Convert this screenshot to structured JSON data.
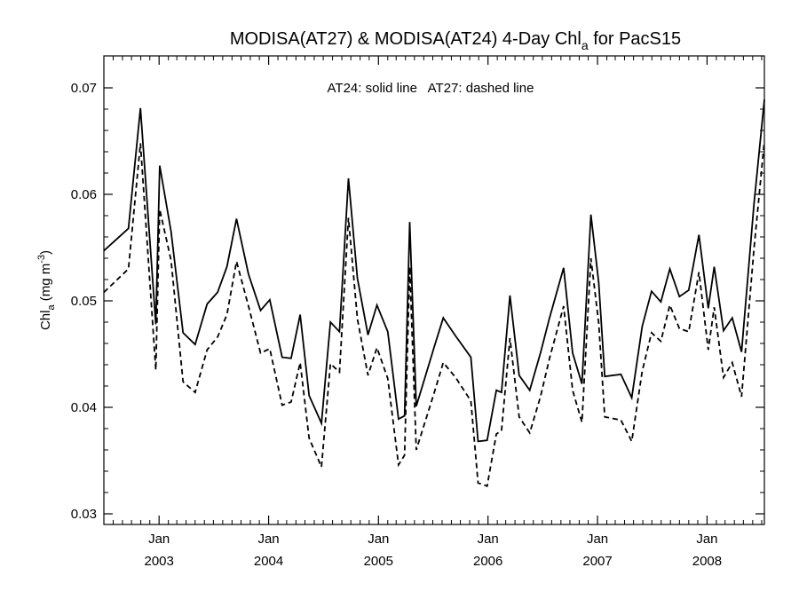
{
  "chart_data": {
    "type": "line",
    "title": {
      "main": "MODISA(AT27) & MODISA(AT24) 4-Day Chl",
      "sub": "a",
      "suffix": " for PacS15"
    },
    "ylabel": {
      "main": "Chl",
      "sub": "a",
      "mid": " (mg m",
      "sup": "-3",
      "end": ")"
    },
    "annotation": "AT24: solid line   AT27: dashed line",
    "ylim": [
      0.029,
      0.073
    ],
    "xlim": [
      "2002-07-01",
      "2008-07-10"
    ],
    "yticks": [
      {
        "value": 0.03,
        "label": "0.03"
      },
      {
        "value": 0.04,
        "label": "0.04"
      },
      {
        "value": 0.05,
        "label": "0.05"
      },
      {
        "value": 0.06,
        "label": "0.06"
      },
      {
        "value": 0.07,
        "label": "0.07"
      }
    ],
    "xticks": [
      {
        "date": "2003-01-01",
        "line1": "Jan",
        "line2": "2003"
      },
      {
        "date": "2004-01-01",
        "line1": "Jan",
        "line2": "2004"
      },
      {
        "date": "2005-01-01",
        "line1": "Jan",
        "line2": "2005"
      },
      {
        "date": "2006-01-01",
        "line1": "Jan",
        "line2": "2006"
      },
      {
        "date": "2007-01-01",
        "line1": "Jan",
        "line2": "2007"
      },
      {
        "date": "2008-01-01",
        "line1": "Jan",
        "line2": "2008"
      }
    ],
    "grid": false,
    "series": [
      {
        "name": "AT24",
        "style": "solid",
        "color": "#000000",
        "points": [
          [
            "2002-07-01",
            0.0547
          ],
          [
            "2002-09-21",
            0.0568
          ],
          [
            "2002-10-31",
            0.0681
          ],
          [
            "2002-12-21",
            0.0478
          ],
          [
            "2003-01-03",
            0.0627
          ],
          [
            "2003-02-10",
            0.0565
          ],
          [
            "2003-03-22",
            0.047
          ],
          [
            "2003-05-01",
            0.0459
          ],
          [
            "2003-06-10",
            0.0497
          ],
          [
            "2003-07-15",
            0.0508
          ],
          [
            "2003-08-15",
            0.0532
          ],
          [
            "2003-09-16",
            0.0577
          ],
          [
            "2003-10-26",
            0.0525
          ],
          [
            "2003-12-05",
            0.0491
          ],
          [
            "2004-01-05",
            0.0501
          ],
          [
            "2004-02-15",
            0.0447
          ],
          [
            "2004-03-16",
            0.0446
          ],
          [
            "2004-04-15",
            0.0487
          ],
          [
            "2004-05-15",
            0.0411
          ],
          [
            "2004-06-25",
            0.0385
          ],
          [
            "2004-07-25",
            0.048
          ],
          [
            "2004-08-24",
            0.0471
          ],
          [
            "2004-09-23",
            0.0615
          ],
          [
            "2004-10-23",
            0.0521
          ],
          [
            "2004-11-27",
            0.0468
          ],
          [
            "2004-12-27",
            0.0496
          ],
          [
            "2005-02-01",
            0.0471
          ],
          [
            "2005-03-09",
            0.0389
          ],
          [
            "2005-03-29",
            0.0392
          ],
          [
            "2005-04-15",
            0.0574
          ],
          [
            "2005-05-07",
            0.0401
          ],
          [
            "2005-07-06",
            0.0457
          ],
          [
            "2005-08-05",
            0.0484
          ],
          [
            "2005-09-15",
            0.0467
          ],
          [
            "2005-11-05",
            0.0447
          ],
          [
            "2005-11-29",
            0.0368
          ],
          [
            "2005-12-29",
            0.0369
          ],
          [
            "2006-01-29",
            0.0416
          ],
          [
            "2006-02-15",
            0.0414
          ],
          [
            "2006-03-15",
            0.0505
          ],
          [
            "2006-04-15",
            0.043
          ],
          [
            "2006-05-20",
            0.0416
          ],
          [
            "2006-06-25",
            0.0451
          ],
          [
            "2006-07-25",
            0.0484
          ],
          [
            "2006-09-10",
            0.0531
          ],
          [
            "2006-10-10",
            0.0451
          ],
          [
            "2006-11-10",
            0.0422
          ],
          [
            "2006-12-10",
            0.0581
          ],
          [
            "2007-01-05",
            0.0517
          ],
          [
            "2007-01-25",
            0.0429
          ],
          [
            "2007-03-20",
            0.0431
          ],
          [
            "2007-04-25",
            0.0409
          ],
          [
            "2007-05-30",
            0.0476
          ],
          [
            "2007-06-30",
            0.0509
          ],
          [
            "2007-07-31",
            0.0499
          ],
          [
            "2007-08-30",
            0.053
          ],
          [
            "2007-10-01",
            0.0504
          ],
          [
            "2007-11-01",
            0.051
          ],
          [
            "2007-12-05",
            0.0562
          ],
          [
            "2008-01-05",
            0.0493
          ],
          [
            "2008-01-25",
            0.0532
          ],
          [
            "2008-02-25",
            0.0472
          ],
          [
            "2008-03-25",
            0.0484
          ],
          [
            "2008-04-25",
            0.0452
          ],
          [
            "2008-06-05",
            0.059
          ],
          [
            "2008-07-10",
            0.0689
          ]
        ]
      },
      {
        "name": "AT27",
        "style": "dashed",
        "color": "#000000",
        "points": [
          [
            "2002-07-01",
            0.0508
          ],
          [
            "2002-09-21",
            0.053
          ],
          [
            "2002-10-31",
            0.0648
          ],
          [
            "2002-12-21",
            0.0435
          ],
          [
            "2003-01-03",
            0.0586
          ],
          [
            "2003-02-10",
            0.0538
          ],
          [
            "2003-03-22",
            0.0424
          ],
          [
            "2003-05-01",
            0.0414
          ],
          [
            "2003-06-10",
            0.0454
          ],
          [
            "2003-07-15",
            0.0466
          ],
          [
            "2003-08-15",
            0.0487
          ],
          [
            "2003-09-16",
            0.0537
          ],
          [
            "2003-10-26",
            0.0495
          ],
          [
            "2003-12-05",
            0.0451
          ],
          [
            "2004-01-05",
            0.0455
          ],
          [
            "2004-02-15",
            0.0402
          ],
          [
            "2004-03-16",
            0.0405
          ],
          [
            "2004-04-15",
            0.0442
          ],
          [
            "2004-05-15",
            0.0371
          ],
          [
            "2004-06-25",
            0.0344
          ],
          [
            "2004-07-25",
            0.0441
          ],
          [
            "2004-08-24",
            0.0433
          ],
          [
            "2004-09-23",
            0.0578
          ],
          [
            "2004-10-23",
            0.0483
          ],
          [
            "2004-11-27",
            0.043
          ],
          [
            "2004-12-27",
            0.0456
          ],
          [
            "2005-02-01",
            0.0427
          ],
          [
            "2005-03-09",
            0.0346
          ],
          [
            "2005-03-29",
            0.0355
          ],
          [
            "2005-04-15",
            0.0532
          ],
          [
            "2005-05-07",
            0.036
          ],
          [
            "2005-07-06",
            0.0414
          ],
          [
            "2005-08-05",
            0.0442
          ],
          [
            "2005-09-15",
            0.0428
          ],
          [
            "2005-11-05",
            0.0406
          ],
          [
            "2005-11-29",
            0.0329
          ],
          [
            "2005-12-29",
            0.0326
          ],
          [
            "2006-01-29",
            0.0375
          ],
          [
            "2006-02-15",
            0.0378
          ],
          [
            "2006-03-15",
            0.0465
          ],
          [
            "2006-04-15",
            0.0391
          ],
          [
            "2006-05-20",
            0.0376
          ],
          [
            "2006-06-25",
            0.041
          ],
          [
            "2006-07-25",
            0.0446
          ],
          [
            "2006-09-10",
            0.0495
          ],
          [
            "2006-10-10",
            0.0416
          ],
          [
            "2006-11-10",
            0.0386
          ],
          [
            "2006-12-10",
            0.054
          ],
          [
            "2007-01-05",
            0.0479
          ],
          [
            "2007-01-25",
            0.0391
          ],
          [
            "2007-03-20",
            0.0388
          ],
          [
            "2007-04-25",
            0.0368
          ],
          [
            "2007-05-30",
            0.0434
          ],
          [
            "2007-06-30",
            0.047
          ],
          [
            "2007-07-31",
            0.0462
          ],
          [
            "2007-08-30",
            0.0496
          ],
          [
            "2007-10-01",
            0.0474
          ],
          [
            "2007-11-01",
            0.0471
          ],
          [
            "2007-12-05",
            0.0527
          ],
          [
            "2008-01-05",
            0.0454
          ],
          [
            "2008-01-25",
            0.0494
          ],
          [
            "2008-02-25",
            0.0428
          ],
          [
            "2008-03-25",
            0.0442
          ],
          [
            "2008-04-25",
            0.041
          ],
          [
            "2008-06-05",
            0.0548
          ],
          [
            "2008-07-10",
            0.065
          ]
        ]
      }
    ]
  }
}
